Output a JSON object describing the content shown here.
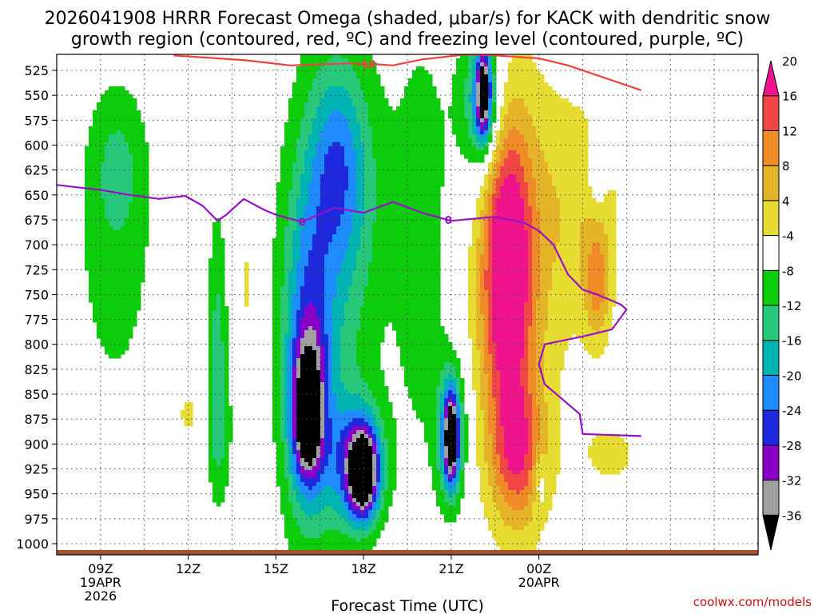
{
  "chart_data": {
    "type": "heatmap",
    "title_line1": "2026041908 HRRR Forecast Omega (shaded, μbar/s) for KACK with dendritic snow",
    "title_line2": "growth region (contoured, red, ºC) and freezing level (contoured, purple, ºC)",
    "xlabel": "Forecast Time (UTC)",
    "credit": "coolwx.com/models",
    "x_range_hours": [
      7.5,
      31.5
    ],
    "x_ticks": [
      {
        "hour": 9,
        "label": "09Z",
        "date": "19APR",
        "year": "2026"
      },
      {
        "hour": 12,
        "label": "12Z",
        "date": "",
        "year": ""
      },
      {
        "hour": 15,
        "label": "15Z",
        "date": "",
        "year": ""
      },
      {
        "hour": 18,
        "label": "18Z",
        "date": "",
        "year": ""
      },
      {
        "hour": 21,
        "label": "21Z",
        "date": "",
        "year": ""
      },
      {
        "hour": 24,
        "label": "00Z",
        "date": "20APR",
        "year": ""
      }
    ],
    "y_ticks": [
      525,
      550,
      575,
      600,
      625,
      650,
      675,
      700,
      725,
      750,
      775,
      800,
      825,
      850,
      875,
      900,
      925,
      950,
      975,
      1000
    ],
    "colorbar": {
      "levels": [
        -36,
        -32,
        -28,
        -24,
        -20,
        -16,
        -12,
        -8,
        -4,
        4,
        8,
        12,
        16,
        20
      ],
      "colors": [
        "#000000",
        "#a0a0a0",
        "#8a00c8",
        "#1e28dc",
        "#1e8cff",
        "#00b4b4",
        "#28c87a",
        "#0ccc0c",
        "#ffffff",
        "#e6dc32",
        "#e6b428",
        "#f08c28",
        "#f04646",
        "#f0148c"
      ]
    },
    "omega_blobs": [
      {
        "h": 9.5,
        "p": 700,
        "rh": 1.5,
        "rp": 180,
        "v": -6
      },
      {
        "h": 9.6,
        "p": 620,
        "rh": 0.9,
        "rp": 70,
        "v": -5
      },
      {
        "h": 13.0,
        "p": 800,
        "rh": 0.35,
        "rp": 140,
        "v": -9
      },
      {
        "h": 13.1,
        "p": 890,
        "rh": 0.45,
        "rp": 70,
        "v": -5
      },
      {
        "h": 14.0,
        "p": 740,
        "rh": 0.35,
        "rp": 80,
        "v": 5
      },
      {
        "h": 12.0,
        "p": 870,
        "rh": 0.5,
        "rp": 30,
        "v": 5
      },
      {
        "h": 16.5,
        "p": 800,
        "rh": 1.6,
        "rp": 260,
        "v": -7
      },
      {
        "h": 16.1,
        "p": 810,
        "rh": 0.8,
        "rp": 150,
        "v": -14
      },
      {
        "h": 16.1,
        "p": 870,
        "rh": 0.55,
        "rp": 70,
        "v": -26
      },
      {
        "h": 16.1,
        "p": 880,
        "rh": 0.25,
        "rp": 25,
        "v": -34
      },
      {
        "h": 17.8,
        "p": 920,
        "rh": 0.9,
        "rp": 60,
        "v": -22
      },
      {
        "h": 18.0,
        "p": 930,
        "rh": 0.45,
        "rp": 40,
        "v": -29
      },
      {
        "h": 17.4,
        "p": 650,
        "rh": 1.6,
        "rp": 170,
        "v": -8
      },
      {
        "h": 17.1,
        "p": 620,
        "rh": 0.9,
        "rp": 90,
        "v": -10
      },
      {
        "h": 20.0,
        "p": 700,
        "rh": 0.9,
        "rp": 220,
        "v": -7
      },
      {
        "h": 21.0,
        "p": 890,
        "rh": 0.5,
        "rp": 70,
        "v": -19
      },
      {
        "h": 21.0,
        "p": 895,
        "rh": 0.22,
        "rp": 40,
        "v": -29
      },
      {
        "h": 22.0,
        "p": 560,
        "rh": 1.0,
        "rp": 100,
        "v": -9
      },
      {
        "h": 22.1,
        "p": 555,
        "rh": 0.45,
        "rp": 55,
        "v": -17
      },
      {
        "h": 22.1,
        "p": 545,
        "rh": 0.2,
        "rp": 40,
        "v": -24
      },
      {
        "h": 23.3,
        "p": 750,
        "rh": 1.7,
        "rp": 250,
        "v": 7
      },
      {
        "h": 22.9,
        "p": 720,
        "rh": 0.85,
        "rp": 150,
        "v": 24
      },
      {
        "h": 23.3,
        "p": 910,
        "rh": 0.9,
        "rp": 70,
        "v": 14
      },
      {
        "h": 25.5,
        "p": 660,
        "rh": 1.6,
        "rp": 120,
        "v": 6
      },
      {
        "h": 26.0,
        "p": 740,
        "rh": 0.45,
        "rp": 60,
        "v": 11
      },
      {
        "h": 26.0,
        "p": 625,
        "rh": 0.3,
        "rp": 40,
        "v": -7
      },
      {
        "h": 24.0,
        "p": 935,
        "rh": 0.2,
        "rp": 30,
        "v": -7
      },
      {
        "h": 26.5,
        "p": 910,
        "rh": 1.2,
        "rp": 40,
        "v": 5
      }
    ],
    "dendritic_contour": {
      "label": "-12",
      "label_hour": 18.1,
      "hours": [
        11.5,
        14.0,
        15.5,
        16.5,
        17.5,
        18.5,
        19.0,
        20.0,
        21.5,
        22.5,
        24.0,
        25.0,
        26.5,
        27.5
      ],
      "pressures": [
        510,
        515,
        520,
        519,
        518,
        519,
        520,
        514,
        509,
        510,
        513,
        520,
        535,
        545
      ]
    },
    "freezing_level": {
      "label": "0",
      "label_hours": [
        15.9,
        20.9
      ],
      "hours": [
        7.5,
        9.0,
        10.0,
        11.0,
        11.9,
        12.5,
        13.0,
        13.3,
        13.9,
        14.6,
        15.0,
        15.9,
        17.0,
        18.0,
        19.0,
        20.0,
        21.0,
        22.5,
        23.5,
        24.0,
        24.5,
        25.0,
        25.5,
        26.0,
        26.8,
        27.0,
        26.5,
        25.5,
        24.2,
        24.0,
        24.2,
        24.8,
        25.0,
        25.4,
        25.5,
        27.5
      ],
      "pressures": [
        640,
        645,
        650,
        654,
        651,
        661,
        676,
        670,
        654,
        665,
        670,
        677,
        663,
        668,
        657,
        668,
        676,
        672,
        678,
        686,
        700,
        730,
        745,
        750,
        760,
        765,
        785,
        792,
        800,
        820,
        840,
        855,
        860,
        870,
        890,
        892
      ]
    }
  }
}
